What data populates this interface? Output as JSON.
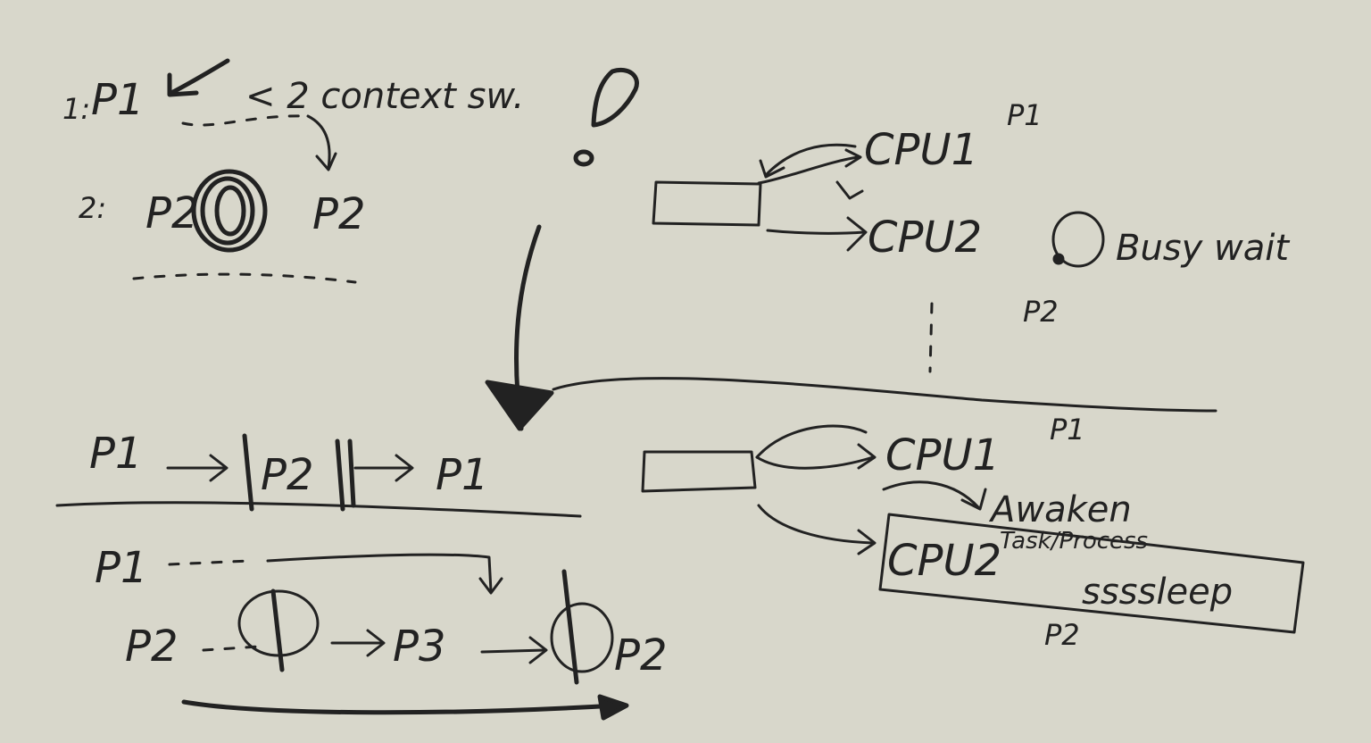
{
  "colors": {
    "background": "#d8d7cb",
    "ink": "#222222"
  },
  "top_left": {
    "row1_label": "1:",
    "row1_process": "P1",
    "context_note": "< 2 context sw.",
    "row2_label": "2:",
    "row2_process": "P2",
    "row2_result": "P2"
  },
  "top_right": {
    "cpu1_label": "CPU1",
    "cpu1_process": "P1",
    "cpu2_label": "CPU2",
    "cpu2_process": "P2",
    "busy_wait": "Busy wait"
  },
  "bottom_left": {
    "timeline_p1": "P1",
    "timeline_p2": "P2",
    "timeline_p1_end": "P1",
    "row_p1": "P1",
    "row_p2": "P2",
    "row_p3": "P3",
    "row_p2_end": "P2"
  },
  "bottom_right": {
    "line_label": "P1",
    "cpu1_label": "CPU1",
    "awaken": "Awaken",
    "task_process": "Task/Process",
    "cpu2_label": "CPU2",
    "sleep": "ssssleep",
    "cpu2_process": "P2"
  },
  "icons": [
    "exclamation-icon",
    "blocked-circle-icon",
    "arrow-icon",
    "idle-loop-icon"
  ]
}
